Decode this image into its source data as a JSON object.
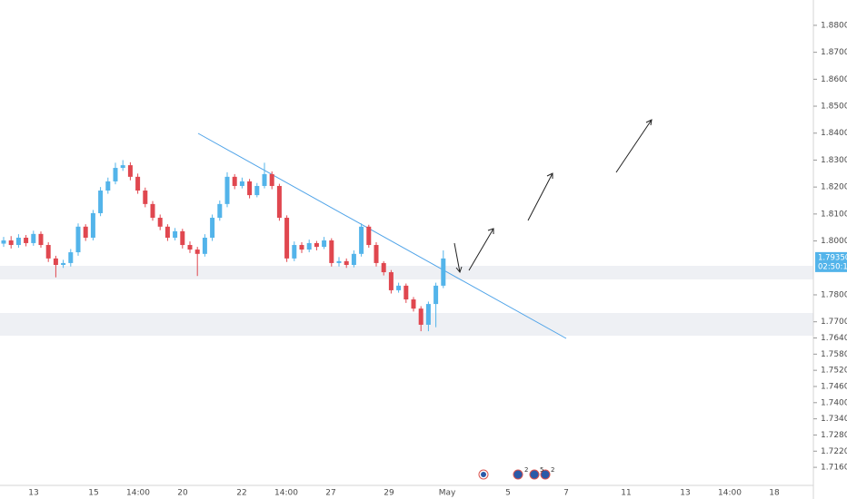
{
  "chart_data": {
    "type": "candlestick",
    "colors": {
      "up": "#53b4ea",
      "down": "#e0474f"
    },
    "open": [
      1.799,
      1.8002,
      1.7985,
      1.8012,
      1.7992,
      1.8026,
      1.7985,
      1.7935,
      1.7911,
      1.7918,
      1.7958,
      1.8053,
      1.8012,
      1.8103,
      1.8187,
      1.8221,
      1.8271,
      1.8281,
      1.8238,
      1.8187,
      1.8137,
      1.8086,
      1.8053,
      1.8012,
      1.8036,
      1.7985,
      1.7968,
      1.7952,
      1.8012,
      1.8086,
      1.8137,
      1.8238,
      1.8204,
      1.8221,
      1.817,
      1.8204,
      1.8248,
      1.8204,
      1.8086,
      1.7935,
      1.7985,
      1.7968,
      1.7992,
      1.7978,
      1.8002,
      1.7918,
      1.7925,
      1.7911,
      1.7952,
      1.8053,
      1.7985,
      1.7918,
      1.7884,
      1.7817,
      1.7834,
      1.7783,
      1.7749,
      1.7689,
      1.7766,
      1.7834
    ],
    "high": [
      1.8015,
      1.8018,
      1.8025,
      1.8022,
      1.8038,
      1.8035,
      1.7995,
      1.7945,
      1.793,
      1.797,
      1.8065,
      1.8062,
      1.8115,
      1.82,
      1.8235,
      1.829,
      1.83,
      1.8292,
      1.825,
      1.8198,
      1.8148,
      1.8098,
      1.8062,
      1.8048,
      1.8045,
      1.7998,
      1.7978,
      1.8025,
      1.8098,
      1.815,
      1.8255,
      1.8248,
      1.8235,
      1.823,
      1.8215,
      1.829,
      1.8258,
      1.8212,
      1.8095,
      1.7998,
      1.7995,
      1.8005,
      1.8,
      1.8015,
      1.801,
      1.794,
      1.7935,
      1.7965,
      1.8065,
      1.806,
      1.7995,
      1.7925,
      1.7892,
      1.7845,
      1.7842,
      1.7792,
      1.7758,
      1.7775,
      1.7845,
      1.7965
    ],
    "low": [
      1.7978,
      1.7972,
      1.7975,
      1.798,
      1.7982,
      1.7975,
      1.7922,
      1.7865,
      1.79,
      1.7905,
      1.7945,
      1.8,
      1.8002,
      1.8092,
      1.8175,
      1.821,
      1.826,
      1.8225,
      1.8175,
      1.8125,
      1.8075,
      1.804,
      1.8,
      1.8002,
      1.7972,
      1.7955,
      1.787,
      1.7942,
      1.8,
      1.8075,
      1.8125,
      1.8192,
      1.8195,
      1.8158,
      1.8162,
      1.8195,
      1.8192,
      1.8075,
      1.7922,
      1.7925,
      1.7955,
      1.7958,
      1.7965,
      1.797,
      1.7905,
      1.7905,
      1.79,
      1.7902,
      1.7942,
      1.7975,
      1.7905,
      1.7872,
      1.7805,
      1.7808,
      1.777,
      1.7738,
      1.7665,
      1.7665,
      1.768,
      1.7825
    ],
    "close": [
      1.8002,
      1.7985,
      1.8012,
      1.7992,
      1.8026,
      1.7985,
      1.7935,
      1.7911,
      1.7918,
      1.7958,
      1.8053,
      1.8012,
      1.8103,
      1.8187,
      1.8221,
      1.8271,
      1.8281,
      1.8238,
      1.8187,
      1.8137,
      1.8086,
      1.8053,
      1.8012,
      1.8036,
      1.7985,
      1.7968,
      1.7952,
      1.8012,
      1.8086,
      1.8137,
      1.8238,
      1.8204,
      1.8221,
      1.817,
      1.8204,
      1.8248,
      1.8204,
      1.8086,
      1.7935,
      1.7985,
      1.7968,
      1.7992,
      1.7978,
      1.8002,
      1.7918,
      1.7925,
      1.7911,
      1.7952,
      1.8053,
      1.7985,
      1.7918,
      1.7884,
      1.7817,
      1.7834,
      1.7783,
      1.7749,
      1.7689,
      1.7766,
      1.7834,
      1.7935
    ],
    "ylim": [
      1.7093,
      1.8894
    ],
    "yticks": [
      {
        "value": 1.88,
        "label": "1.88000"
      },
      {
        "value": 1.87,
        "label": "1.87000"
      },
      {
        "value": 1.86,
        "label": "1.86000"
      },
      {
        "value": 1.85,
        "label": "1.85000"
      },
      {
        "value": 1.84,
        "label": "1.84000"
      },
      {
        "value": 1.83,
        "label": "1.83000"
      },
      {
        "value": 1.82,
        "label": "1.82000"
      },
      {
        "value": 1.81,
        "label": "1.81000"
      },
      {
        "value": 1.8,
        "label": "1.80000"
      },
      {
        "value": 1.78,
        "label": "1.78000"
      },
      {
        "value": 1.77,
        "label": "1.77000"
      },
      {
        "value": 1.764,
        "label": "1.76400"
      },
      {
        "value": 1.758,
        "label": "1.75800"
      },
      {
        "value": 1.752,
        "label": "1.75200"
      },
      {
        "value": 1.746,
        "label": "1.74600"
      },
      {
        "value": 1.74,
        "label": "1.74000"
      },
      {
        "value": 1.734,
        "label": "1.73400"
      },
      {
        "value": 1.728,
        "label": "1.72800"
      },
      {
        "value": 1.722,
        "label": "1.72200"
      },
      {
        "value": 1.716,
        "label": "1.71600"
      }
    ],
    "xtick_labels": [
      "13",
      "15",
      "14:00",
      "20",
      "22",
      "14:00",
      "27",
      "29",
      "May",
      "5",
      "7",
      "11",
      "13",
      "14:00",
      "18"
    ],
    "last_price": {
      "value": 1.7935,
      "label": "1.79350"
    },
    "countdown": "02:50:18",
    "event_badges": [
      "2",
      "5",
      "2"
    ]
  }
}
